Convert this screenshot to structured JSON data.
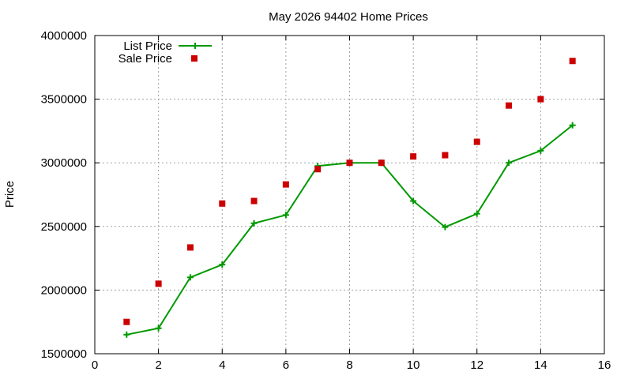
{
  "chart_data": {
    "type": "line",
    "title": "May 2026 94402 Home Prices",
    "xlabel": "",
    "ylabel": "Price",
    "xlim": [
      0,
      16
    ],
    "ylim": [
      1500000,
      4000000
    ],
    "xticks": [
      0,
      2,
      4,
      6,
      8,
      10,
      12,
      14,
      16
    ],
    "yticks": [
      1500000,
      2000000,
      2500000,
      3000000,
      3500000,
      4000000
    ],
    "grid": true,
    "legend_position": "top-left",
    "series": [
      {
        "name": "List Price",
        "style": "line-with-plus-markers",
        "color": "#009900",
        "x": [
          1,
          2,
          3,
          4,
          5,
          6,
          7,
          8,
          9,
          10,
          11,
          12,
          13,
          14,
          15
        ],
        "y": [
          1650000,
          1700000,
          2100000,
          2200000,
          2525000,
          2590000,
          2975000,
          3000000,
          3000000,
          2700000,
          2495000,
          2600000,
          3000000,
          3095000,
          3295000
        ]
      },
      {
        "name": "Sale Price",
        "style": "square-markers",
        "color": "#cc0000",
        "x": [
          1,
          2,
          3,
          4,
          5,
          6,
          7,
          8,
          9,
          10,
          11,
          12,
          13,
          14,
          15
        ],
        "y": [
          1750000,
          2050000,
          2335000,
          2680000,
          2700000,
          2830000,
          2950000,
          3000000,
          3000000,
          3050000,
          3060000,
          3165000,
          3450000,
          3500000,
          3800000
        ]
      }
    ]
  }
}
